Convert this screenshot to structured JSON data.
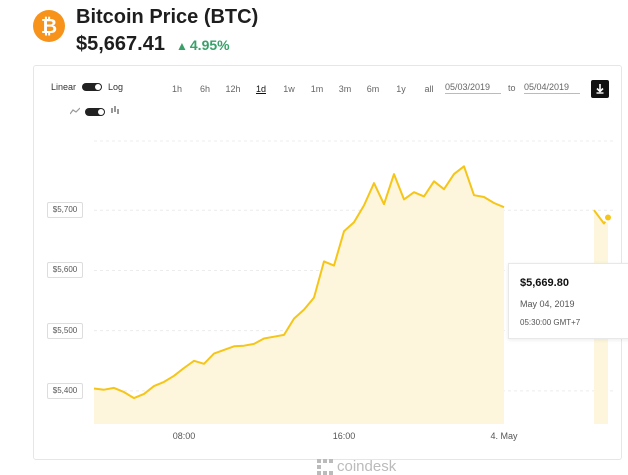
{
  "header": {
    "coin_symbol_glyph": "₿",
    "title": "Bitcoin Price (BTC)",
    "price": "$5,667.41",
    "change": "4.95%",
    "change_color": "#38a169"
  },
  "controls": {
    "scale_linear": "Linear",
    "scale_log": "Log",
    "ranges": [
      "1h",
      "6h",
      "12h",
      "1d",
      "1w",
      "1m",
      "3m",
      "6m",
      "1y",
      "all"
    ],
    "active_range": "1d",
    "date_from": "05/03/2019",
    "date_to": "05/04/2019",
    "date_separator": "to",
    "download_icon": "download-icon",
    "line_chart_icon": "line-chart-icon",
    "candle_chart_icon": "candlestick-icon"
  },
  "tooltip": {
    "price": "$5,669.80",
    "date": "May 04, 2019",
    "time": "05:30:00 GMT+7"
  },
  "watermark": "coindesk",
  "colors": {
    "line": "#f5c518",
    "area": "#fdf6dc",
    "accent": "#f7931a"
  },
  "chart_data": {
    "type": "area",
    "ylabel_ticks": [
      "$5,700",
      "$5,600",
      "$5,500",
      "$5,400"
    ],
    "y_tick_values": [
      5700,
      5600,
      5500,
      5400
    ],
    "xlabel_ticks": [
      "08:00",
      "16:00",
      "4. May"
    ],
    "x_tick_values": [
      8,
      16,
      24
    ],
    "ylim": [
      5345,
      5815
    ],
    "xlim": [
      3.5,
      29.5
    ],
    "grid": true,
    "x": [
      3.5,
      4.0,
      4.5,
      5.0,
      5.5,
      6.0,
      6.5,
      7.0,
      7.5,
      8.0,
      8.5,
      9.0,
      9.5,
      10.0,
      10.5,
      11.0,
      11.5,
      12.0,
      12.5,
      13.0,
      13.5,
      14.0,
      14.5,
      15.0,
      15.5,
      16.0,
      16.5,
      17.0,
      17.5,
      18.0,
      18.5,
      19.0,
      19.5,
      20.0,
      20.5,
      21.0,
      21.5,
      22.0,
      22.5,
      23.0,
      23.5,
      24.0,
      28.5,
      29.0,
      29.2
    ],
    "y": [
      5404,
      5402,
      5405,
      5398,
      5388,
      5395,
      5408,
      5415,
      5425,
      5438,
      5450,
      5445,
      5462,
      5468,
      5474,
      5475,
      5478,
      5487,
      5490,
      5493,
      5520,
      5535,
      5555,
      5615,
      5608,
      5665,
      5680,
      5708,
      5745,
      5710,
      5760,
      5718,
      5730,
      5723,
      5748,
      5735,
      5760,
      5773,
      5725,
      5722,
      5712,
      5705,
      5700,
      5678,
      5688
    ]
  }
}
